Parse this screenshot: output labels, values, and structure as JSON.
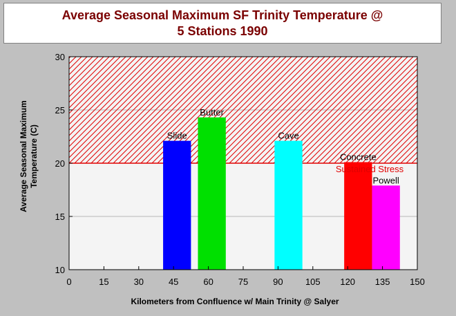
{
  "chart_data": {
    "type": "bar",
    "title": "Average Seasonal Maximum SF Trinity Temperature @",
    "subtitle": "5 Stations 1990",
    "xlabel": "Kilometers from Confluence w/ Main Trinity @ Salyer",
    "ylabel_line1": "Average Seasonal Maximum",
    "ylabel_line2": "Temperature (C)",
    "xlim": [
      0,
      150
    ],
    "ylim": [
      10,
      30
    ],
    "xticks": [
      0,
      15,
      30,
      45,
      60,
      75,
      90,
      105,
      120,
      135,
      150
    ],
    "yticks": [
      10,
      15,
      20,
      25,
      30
    ],
    "grid": true,
    "stress_zone": {
      "label": "Sustained Stress",
      "from": 20,
      "to": 30,
      "color": "#e00000"
    },
    "bars": [
      {
        "label": "Slide",
        "x0": 40.5,
        "x1": 52.5,
        "value": 22.1,
        "color": "#0000ff"
      },
      {
        "label": "Butter",
        "x0": 55.5,
        "x1": 67.5,
        "value": 24.3,
        "color": "#00e000"
      },
      {
        "label": "Cave",
        "x0": 88.5,
        "x1": 100.5,
        "value": 22.1,
        "color": "#00ffff"
      },
      {
        "label": "Concrete",
        "x0": 118.5,
        "x1": 130.5,
        "value": 20.1,
        "color": "#ff0000"
      },
      {
        "label": "Powell",
        "x0": 130.5,
        "x1": 142.5,
        "value": 17.9,
        "color": "#ff00ff"
      }
    ]
  }
}
